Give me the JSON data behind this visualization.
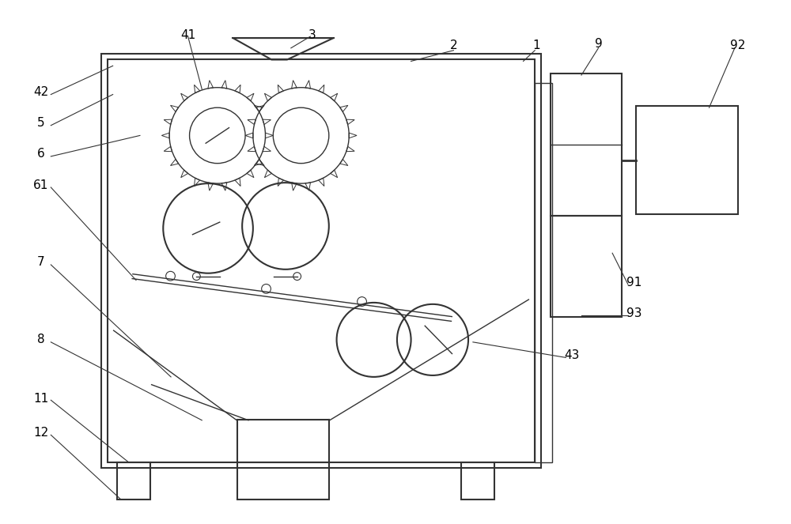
{
  "bg_color": "#ffffff",
  "line_color": "#333333",
  "label_color": "#000000",
  "fig_width": 10.0,
  "fig_height": 6.63
}
